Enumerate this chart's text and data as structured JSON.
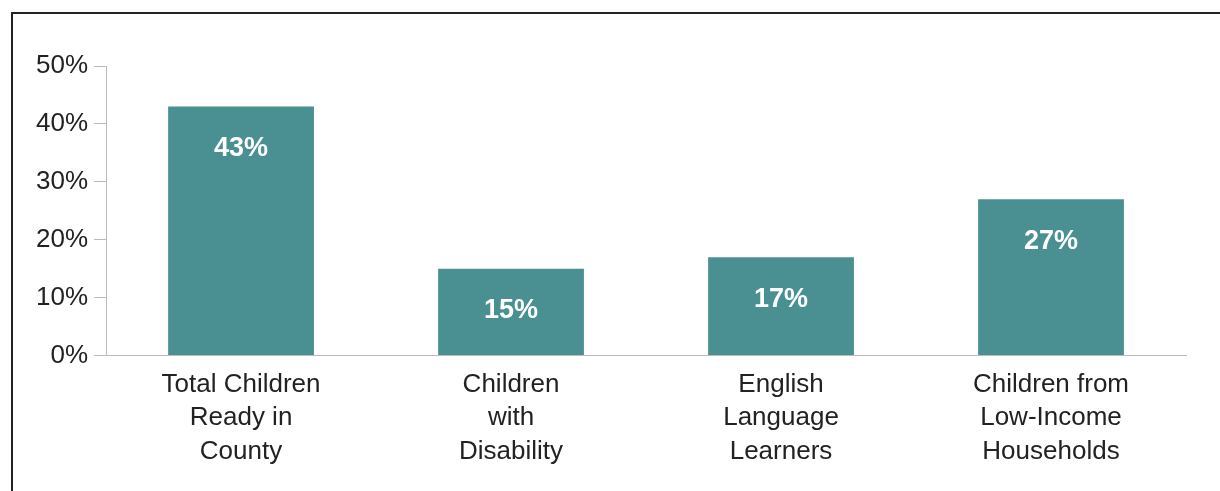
{
  "chart_data": {
    "type": "bar",
    "categories": [
      "Total Children\nReady in\nCounty",
      "Children\nwith\nDisability",
      "English\nLanguage\nLearners",
      "Children from\nLow-Income\nHouseholds"
    ],
    "values": [
      43,
      15,
      17,
      27
    ],
    "value_labels": [
      "43%",
      "15%",
      "17%",
      "27%"
    ],
    "color": "#4a8f91",
    "ylim": [
      0,
      50
    ],
    "yticks": [
      {
        "value": 0,
        "label": "0%"
      },
      {
        "value": 10,
        "label": "10%"
      },
      {
        "value": 20,
        "label": "20%"
      },
      {
        "value": 30,
        "label": "30%"
      },
      {
        "value": 40,
        "label": "40%"
      },
      {
        "value": 50,
        "label": "50%"
      }
    ],
    "grid": false,
    "legend": false
  }
}
